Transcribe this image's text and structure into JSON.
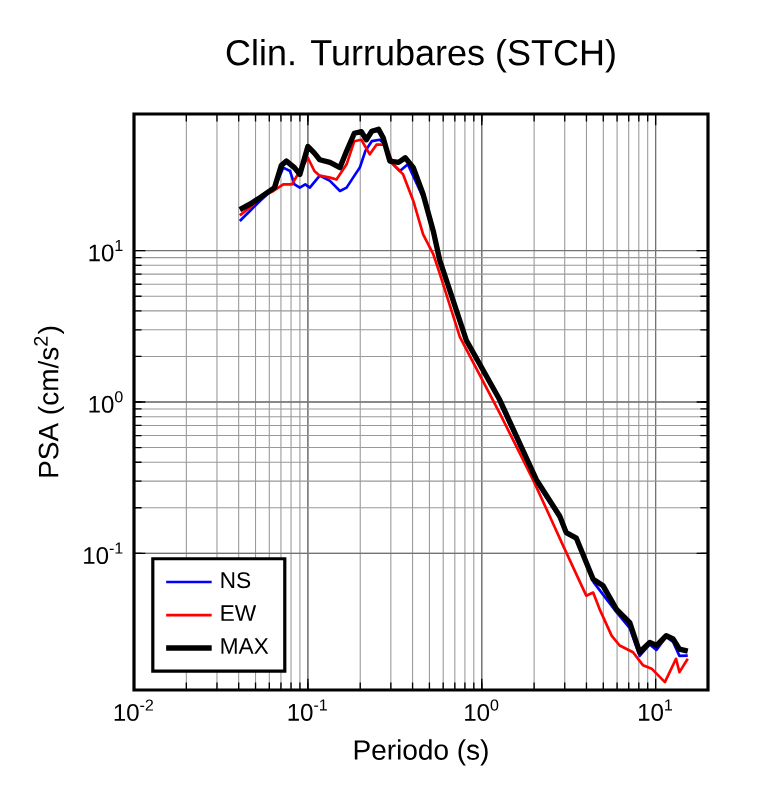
{
  "chart_data": {
    "type": "line",
    "title": "Clin. Turrubares (STCH)",
    "xlabel": "Periodo (s)",
    "ylabel": "PSA (cm/s$^{2}$)",
    "log": "xy",
    "grid": true,
    "legend": "bottom left",
    "line_style": "solid",
    "xlim": [
      0.01,
      20
    ],
    "ylim": [
      0.0125,
      80
    ],
    "xticks": [
      {
        "value": 0.01,
        "label": "10$^{-2}$"
      },
      {
        "value": 0.1,
        "label": "10$^{-1}$"
      },
      {
        "value": 1,
        "label": "10$^{0}$"
      },
      {
        "value": 10,
        "label": "10$^{1}$"
      }
    ],
    "yticks": [
      {
        "value": 0.1,
        "label": "10$^{-1}$"
      },
      {
        "value": 1,
        "label": "10$^{0}$"
      },
      {
        "value": 10,
        "label": "10$^{1}$"
      }
    ],
    "series": [
      {
        "name": "NS",
        "color": "#0000ff",
        "x": [
          0.0406,
          0.0464,
          0.053,
          0.0643,
          0.0722,
          0.0789,
          0.0837,
          0.0899,
          0.0966,
          0.1026,
          0.117,
          0.134,
          0.153,
          0.167,
          0.182,
          0.199,
          0.214,
          0.233,
          0.259,
          0.279,
          0.296,
          0.338,
          0.376,
          0.46,
          0.526,
          0.627,
          0.815,
          1.27,
          2.06,
          2.81,
          3.5,
          4.37,
          5.94,
          7.1,
          8.09,
          9.25,
          10.1,
          11.5,
          12.6,
          13.7,
          15.3
        ],
        "values": [
          15.7,
          18.3,
          21.3,
          26.1,
          35.4,
          33.6,
          27.4,
          26.1,
          27.4,
          26.1,
          31.3,
          28.9,
          24.8,
          26.1,
          30.4,
          35.4,
          45.5,
          52.9,
          54.1,
          50.2,
          39.1,
          33.6,
          37.2,
          22.5,
          null,
          null,
          null,
          0.98,
          0.295,
          0.17,
          null,
          0.065,
          0.041,
          0.032,
          0.021,
          0.025,
          0.023,
          0.028,
          0.026,
          0.021,
          0.0211
        ]
      },
      {
        "name": "EW",
        "color": "#ff0000",
        "x": [
          0.0406,
          0.0464,
          0.053,
          0.0633,
          0.0722,
          0.081,
          0.0899,
          0.1,
          0.109,
          0.117,
          0.134,
          0.146,
          0.167,
          0.185,
          0.203,
          0.227,
          0.248,
          0.279,
          0.31,
          0.353,
          0.404,
          0.46,
          0.526,
          0.574,
          0.748,
          1.27,
          1.97,
          2.46,
          2.94,
          3.99,
          4.37,
          4.76,
          5.58,
          6.21,
          7.41,
          8.47,
          9.48,
          11.3,
          13.1,
          13.7,
          15.3
        ],
        "values": [
          17.1,
          19.3,
          22.4,
          24.8,
          27.4,
          27.4,
          33.6,
          41.1,
          33.6,
          31.3,
          30.4,
          29.5,
          37.2,
          52.9,
          54.1,
          43.3,
          50.2,
          50.2,
          37.2,
          31.9,
          21.3,
          12.8,
          9.5,
          7.02,
          2.69,
          0.841,
          0.307,
          0.176,
          0.112,
          0.0525,
          0.0551,
          0.0428,
          0.0286,
          0.0246,
          0.0222,
          0.0182,
          0.0173,
          0.0141,
          0.0201,
          0.0164,
          0.0201
        ]
      },
      {
        "name": "MAX",
        "color": "#000000",
        "x": [
          0.0406,
          0.0464,
          0.053,
          0.0643,
          0.0703,
          0.0753,
          0.0837,
          0.0899,
          0.1,
          0.109,
          0.117,
          0.134,
          0.153,
          0.167,
          0.185,
          0.203,
          0.217,
          0.233,
          0.255,
          0.271,
          0.296,
          0.332,
          0.363,
          0.404,
          0.46,
          0.526,
          0.574,
          0.627,
          0.815,
          1.27,
          2.06,
          2.81,
          3.06,
          3.5,
          4.37,
          4.99,
          5.94,
          7.1,
          8.09,
          9.25,
          10.1,
          11.5,
          12.6,
          13.7,
          15.3
        ],
        "values": [
          18.7,
          20.3,
          22.4,
          26.1,
          36.5,
          39.1,
          35.4,
          31.9,
          48.8,
          44.1,
          39.9,
          38.3,
          35.4,
          45.5,
          59.7,
          61.1,
          54.1,
          61.5,
          63.5,
          55.7,
          39.1,
          38.3,
          41.1,
          35.4,
          23.6,
          13.5,
          8.59,
          6.35,
          2.56,
          1.03,
          0.307,
          0.176,
          0.137,
          0.126,
          0.0675,
          0.061,
          0.0428,
          0.0349,
          0.0222,
          0.0258,
          0.0246,
          0.0286,
          0.0272,
          0.0233,
          0.0226
        ]
      }
    ]
  }
}
